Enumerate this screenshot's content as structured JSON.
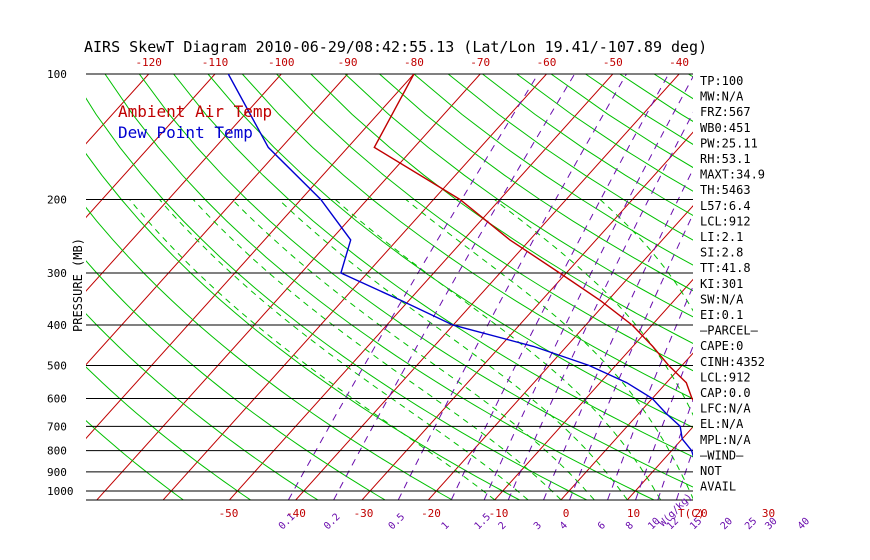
{
  "title": "AIRS SkewT Diagram 2010-06-29/08:42:55.13 (Lat/Lon 19.41/-107.89 deg)",
  "colors": {
    "ambient": "#c00000",
    "dewpoint": "#0000d0",
    "isotherm": "#c00000",
    "dry_adiabat": "#00c000",
    "moist_adiabat": "#00c000",
    "mixing_ratio": "#6a0dad",
    "isobar": "#000000"
  },
  "legend": {
    "ambient": "Ambient Air Temp",
    "dewpoint": "Dew Point Temp"
  },
  "indices": [
    "TP:100",
    "MW:N/A",
    "FRZ:567",
    "WB0:451",
    "PW:25.11",
    "RH:53.1",
    "MAXT:34.9",
    "TH:5463",
    "L57:6.4",
    "LCL:912",
    "LI:2.1",
    "SI:2.8",
    "TT:41.8",
    "KI:301",
    "SW:N/A",
    "EI:0.1",
    "—PARCEL—",
    "CAPE:0",
    "CINH:4352",
    "LCL:912",
    "CAP:0.0",
    "LFC:N/A",
    "EL:N/A",
    "MPL:N/A",
    "—WIND—",
    "NOT",
    "AVAIL"
  ],
  "chart_data": {
    "type": "line",
    "title": "AIRS SkewT Diagram 2010-06-29/08:42:55.13 (Lat/Lon 19.41/-107.89 deg)",
    "ylabel": "PRESSURE (MB)",
    "xlabel": "T(C)",
    "mixing_ratio_unit": "W(g/kg)",
    "y_scale": "log",
    "ylim": [
      1050,
      100
    ],
    "pressure_ticks": [
      100,
      200,
      300,
      400,
      500,
      600,
      700,
      800,
      900,
      1000
    ],
    "top_temp_ticks": [
      -120,
      -110,
      -100,
      -90,
      -80,
      -70,
      -60,
      -50,
      -40
    ],
    "bottom_temp_ticks": [
      -50,
      -40,
      -30,
      -20,
      -10,
      0,
      10,
      20,
      30
    ],
    "mixing_ratio_ticks": [
      "0.1",
      "0.2",
      "0.5",
      "1",
      "1.5",
      "2",
      "3",
      "4",
      "6",
      "8",
      "10",
      "12",
      "15",
      "20",
      "25",
      "30",
      "40"
    ],
    "series": [
      {
        "name": "Ambient Air Temp",
        "points": [
          {
            "p": 100,
            "t": -80
          },
          {
            "p": 150,
            "t": -76
          },
          {
            "p": 200,
            "t": -56
          },
          {
            "p": 250,
            "t": -43
          },
          {
            "p": 300,
            "t": -31
          },
          {
            "p": 350,
            "t": -21
          },
          {
            "p": 400,
            "t": -13
          },
          {
            "p": 450,
            "t": -7
          },
          {
            "p": 500,
            "t": -2
          },
          {
            "p": 550,
            "t": 3
          },
          {
            "p": 600,
            "t": 6
          },
          {
            "p": 650,
            "t": 10
          },
          {
            "p": 700,
            "t": 13
          },
          {
            "p": 750,
            "t": 17
          },
          {
            "p": 800,
            "t": 19
          },
          {
            "p": 850,
            "t": 22
          },
          {
            "p": 900,
            "t": 25
          },
          {
            "p": 950,
            "t": 27
          },
          {
            "p": 1000,
            "t": 26
          },
          {
            "p": 1013,
            "t": 26
          }
        ]
      },
      {
        "name": "Dew Point Temp",
        "points": [
          {
            "p": 100,
            "t": -108
          },
          {
            "p": 150,
            "t": -92
          },
          {
            "p": 200,
            "t": -77
          },
          {
            "p": 250,
            "t": -67
          },
          {
            "p": 300,
            "t": -64
          },
          {
            "p": 350,
            "t": -51
          },
          {
            "p": 400,
            "t": -40
          },
          {
            "p": 450,
            "t": -25
          },
          {
            "p": 500,
            "t": -14
          },
          {
            "p": 550,
            "t": -6
          },
          {
            "p": 600,
            "t": 0
          },
          {
            "p": 650,
            "t": 4
          },
          {
            "p": 700,
            "t": 8
          },
          {
            "p": 750,
            "t": 10
          },
          {
            "p": 800,
            "t": 13
          },
          {
            "p": 850,
            "t": 15
          },
          {
            "p": 900,
            "t": 17
          },
          {
            "p": 950,
            "t": 20
          },
          {
            "p": 1000,
            "t": 20
          },
          {
            "p": 1013,
            "t": 20
          }
        ]
      }
    ]
  }
}
